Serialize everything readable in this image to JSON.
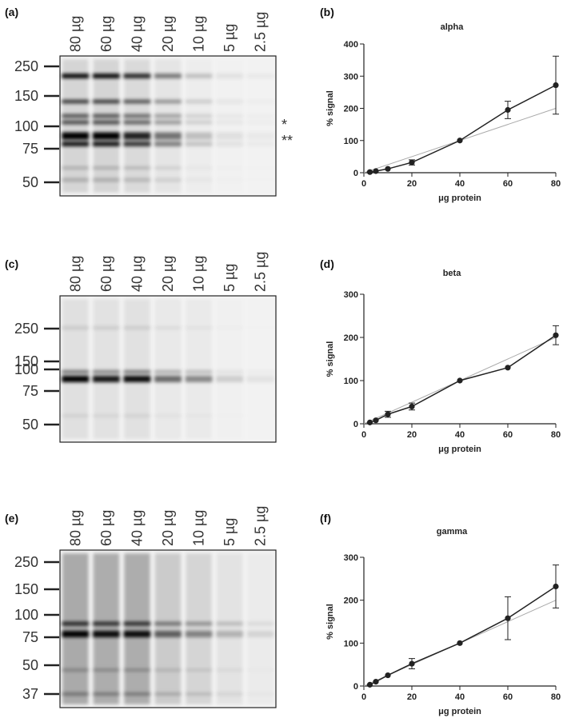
{
  "blots": [
    {
      "panel": "(a)",
      "lanes": [
        "80 µg",
        "60 µg",
        "40 µg",
        "20 µg",
        "10 µg",
        "5 µg",
        "2.5 µg"
      ],
      "markers": [
        "250",
        "150",
        "100",
        "75",
        "50"
      ],
      "annotations": [
        "*",
        "**"
      ]
    },
    {
      "panel": "(c)",
      "lanes": [
        "80 µg",
        "60 µg",
        "40 µg",
        "20 µg",
        "10 µg",
        "5 µg",
        "2.5 µg"
      ],
      "markers": [
        "250",
        "150",
        "100",
        "75",
        "50"
      ]
    },
    {
      "panel": "(e)",
      "lanes": [
        "80 µg",
        "60 µg",
        "40 µg",
        "20 µg",
        "10 µg",
        "5 µg",
        "2.5 µg"
      ],
      "markers": [
        "250",
        "150",
        "100",
        "75",
        "50",
        "37"
      ]
    }
  ],
  "chart_data": [
    {
      "type": "line",
      "panel": "(b)",
      "title": "alpha",
      "x_label": "μg protein",
      "y_label": "% signal",
      "xlim": [
        0,
        80
      ],
      "xticks": [
        0,
        20,
        40,
        60,
        80
      ],
      "ylim": [
        0,
        400
      ],
      "yticks": [
        0,
        100,
        200,
        300,
        400
      ],
      "series": [
        {
          "color": "#222222",
          "x": [
            2.5,
            5,
            10,
            20,
            40,
            60,
            80
          ],
          "values": [
            2,
            5,
            12,
            32,
            100,
            195,
            272
          ],
          "errors": [
            null,
            null,
            null,
            8,
            null,
            27,
            90
          ]
        },
        {
          "color": "#aaaaaa",
          "x": [
            0,
            80
          ],
          "values": [
            0,
            200
          ]
        }
      ]
    },
    {
      "type": "line",
      "panel": "(d)",
      "title": "beta",
      "x_label": "μg protein",
      "y_label": "% signal",
      "xlim": [
        0,
        80
      ],
      "xticks": [
        0,
        20,
        40,
        60,
        80
      ],
      "ylim": [
        0,
        300
      ],
      "yticks": [
        0,
        100,
        200,
        300
      ],
      "series": [
        {
          "color": "#222222",
          "x": [
            2.5,
            5,
            10,
            20,
            40,
            60,
            80
          ],
          "values": [
            3,
            8,
            22,
            40,
            100,
            130,
            205
          ],
          "errors": [
            null,
            null,
            7,
            8,
            null,
            null,
            22
          ]
        },
        {
          "color": "#aaaaaa",
          "x": [
            0,
            80
          ],
          "values": [
            0,
            200
          ]
        }
      ]
    },
    {
      "type": "line",
      "panel": "(f)",
      "title": "gamma",
      "x_label": "μg protein",
      "y_label": "% signal",
      "xlim": [
        0,
        80
      ],
      "xticks": [
        0,
        20,
        40,
        60,
        80
      ],
      "ylim": [
        0,
        300
      ],
      "yticks": [
        0,
        100,
        200,
        300
      ],
      "series": [
        {
          "color": "#222222",
          "x": [
            2.5,
            5,
            10,
            20,
            40,
            60,
            80
          ],
          "values": [
            3,
            10,
            25,
            52,
            100,
            158,
            232
          ],
          "errors": [
            null,
            null,
            null,
            12,
            null,
            50,
            50
          ]
        },
        {
          "color": "#aaaaaa",
          "x": [
            0,
            80
          ],
          "values": [
            0,
            200
          ]
        }
      ]
    }
  ]
}
